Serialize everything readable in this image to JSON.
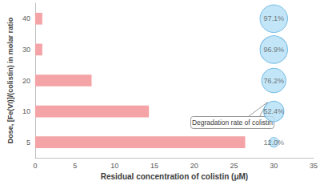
{
  "chart_data": {
    "type": "bar",
    "orientation": "horizontal",
    "categories": [
      "5",
      "10",
      "20",
      "30",
      "40"
    ],
    "values": [
      26.4,
      14.3,
      7.1,
      0.9,
      0.9
    ],
    "color": "#f4a3a6",
    "xlabel": "Residual concentration of colistin (μM)",
    "ylabel": "Dose, [Fe(VI)]/(colistin) in molar ratio",
    "xlim": [
      0,
      35
    ],
    "xticks": [
      0,
      5,
      10,
      15,
      20,
      25,
      30,
      35
    ],
    "grid": false,
    "degradation_rate": {
      "values": [
        12.0,
        52.4,
        76.2,
        96.9,
        97.1
      ],
      "value_labels": [
        "12.0%",
        "52.4%",
        "76.2%",
        "96.9%",
        "97.1%"
      ],
      "color": "#b3def5"
    },
    "annotation": "Degradation rate of colistin"
  }
}
